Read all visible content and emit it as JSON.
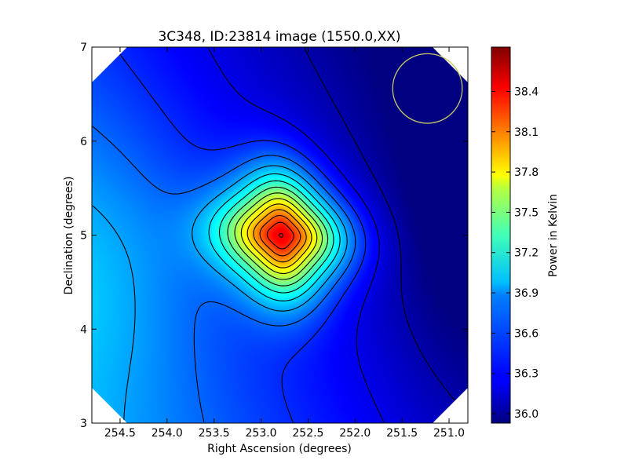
{
  "chart_data": {
    "type": "heatmap",
    "title": "3C348, ID:23814 image (1550.0,XX)",
    "xlabel": "Right Ascension (degrees)",
    "ylabel": "Declination (degrees)",
    "xlim": [
      254.8,
      250.8
    ],
    "ylim": [
      3.0,
      7.0
    ],
    "x_axis_reversed": true,
    "x_ticks": [
      "254.5",
      "254.0",
      "253.5",
      "253.0",
      "252.5",
      "252.0",
      "251.5",
      "251.0"
    ],
    "x_tick_values": [
      254.5,
      254.0,
      253.5,
      253.0,
      252.5,
      252.0,
      251.5,
      251.0
    ],
    "y_ticks": [
      "3",
      "4",
      "5",
      "6",
      "7"
    ],
    "y_tick_values": [
      3,
      4,
      5,
      6,
      7
    ],
    "colormap": "jet",
    "colorbar": {
      "label": "Power in Kelvin",
      "min": 35.93,
      "max": 38.73,
      "ticks": [
        "36.0",
        "36.3",
        "36.6",
        "36.9",
        "37.2",
        "37.5",
        "37.8",
        "38.1",
        "38.4"
      ],
      "tick_values": [
        36.0,
        36.3,
        36.6,
        36.9,
        37.2,
        37.5,
        37.8,
        38.1,
        38.4
      ]
    },
    "peak": {
      "ra": 252.78,
      "dec": 5.0,
      "value": 38.65
    },
    "beam_circle": {
      "ra": 251.23,
      "dec": 6.56,
      "radius_deg": 0.37,
      "color": "#c8c864"
    },
    "grid": false,
    "contours": true,
    "blank_corners": true
  },
  "colors": {
    "contour": "#000000",
    "beam_circle": "#c8c864",
    "background": "#ffffff"
  }
}
